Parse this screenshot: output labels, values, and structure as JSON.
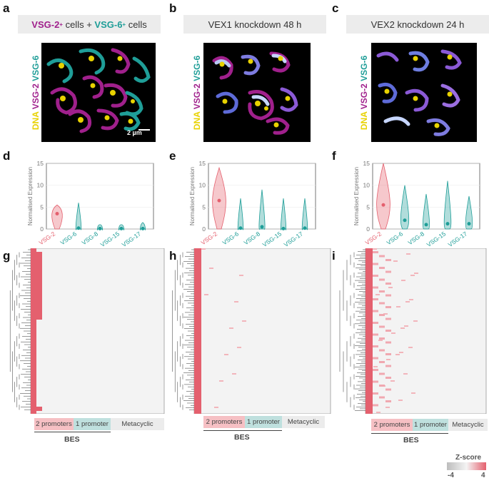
{
  "panels": {
    "a": "a",
    "b": "b",
    "c": "c",
    "d": "d",
    "e": "e",
    "f": "f",
    "g": "g",
    "h": "h",
    "i": "i"
  },
  "banners": {
    "a": {
      "vsg2": "VSG-2",
      "sup": "+",
      "mid": " cells + ",
      "vsg6": "VSG-6",
      "sup2": "+",
      "end": " cells"
    },
    "b": "VEX1 knockdown 48 h",
    "c": "VEX2 knockdown 24 h"
  },
  "micro_labels": {
    "dna": "DNA",
    "vsg2": "VSG-2",
    "vsg6": "VSG-6"
  },
  "scale_bar": "2 µm",
  "colors": {
    "magenta": "#a0208c",
    "teal": "#1f9e98",
    "dna": "#e8d200",
    "heat_high": "#e4606e",
    "bg_grey": "#ececec"
  },
  "chart_data": [
    {
      "type": "violin",
      "panel": "d",
      "ylabel": "Normalised Expression",
      "ylim": [
        0,
        15
      ],
      "yticks": [
        "0",
        "5",
        "10",
        "15"
      ],
      "categories": [
        "VSG-2",
        "VSG-6",
        "VSG-8",
        "VSG-15",
        "VSG-17"
      ],
      "medians": [
        3.5,
        0.2,
        0.1,
        0.1,
        0.1
      ],
      "max": [
        5.5,
        6,
        1,
        1,
        1.5
      ]
    },
    {
      "type": "violin",
      "panel": "e",
      "ylabel": "Normalised Expression",
      "ylim": [
        0,
        15
      ],
      "yticks": [
        "0",
        "5",
        "10",
        "15"
      ],
      "categories": [
        "VSG-2",
        "VSG-6",
        "VSG-8",
        "VSG-15",
        "VSG-17"
      ],
      "medians": [
        6.5,
        0.2,
        0.5,
        0.1,
        0.2
      ],
      "max": [
        14,
        7,
        9,
        7,
        7
      ]
    },
    {
      "type": "violin",
      "panel": "f",
      "ylabel": "Normalised Expression",
      "ylim": [
        0,
        15
      ],
      "yticks": [
        "0",
        "5",
        "10",
        "15"
      ],
      "categories": [
        "VSG-2",
        "VSG-6",
        "VSG-8",
        "VSG-15",
        "VSG-17"
      ],
      "medians": [
        5.5,
        2,
        1,
        1.2,
        1.2
      ],
      "max": [
        15,
        10,
        8,
        11,
        7.5
      ]
    },
    {
      "type": "heatmap",
      "panel": "g"
    },
    {
      "type": "heatmap",
      "panel": "h"
    },
    {
      "type": "heatmap",
      "panel": "i"
    }
  ],
  "heat_legend": {
    "p2": "2 promoters",
    "p1": "1 promoter",
    "meta": "Metacyclic",
    "bes": "BES"
  },
  "zscore": {
    "title": "Z-score",
    "min": "-4",
    "max": "4"
  }
}
